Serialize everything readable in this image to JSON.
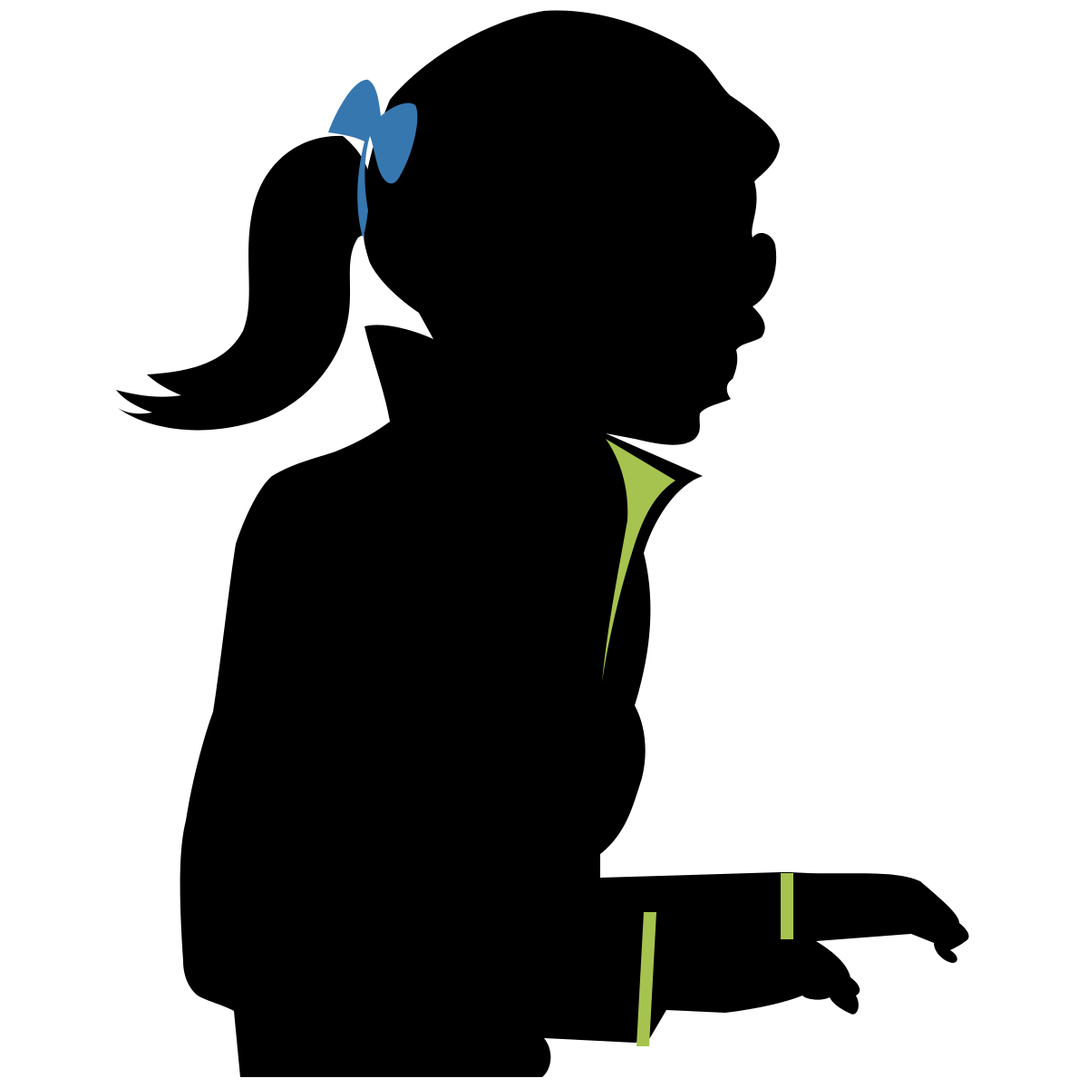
{
  "image": {
    "background_color": "#ffffff",
    "silhouette_color": "#000000",
    "hair_bow_color": "#3677b0",
    "collar_lining_color": "#a6c34f",
    "cuff_stripe_color": "#a6c34f",
    "wristband_color": "#a6c34f"
  }
}
